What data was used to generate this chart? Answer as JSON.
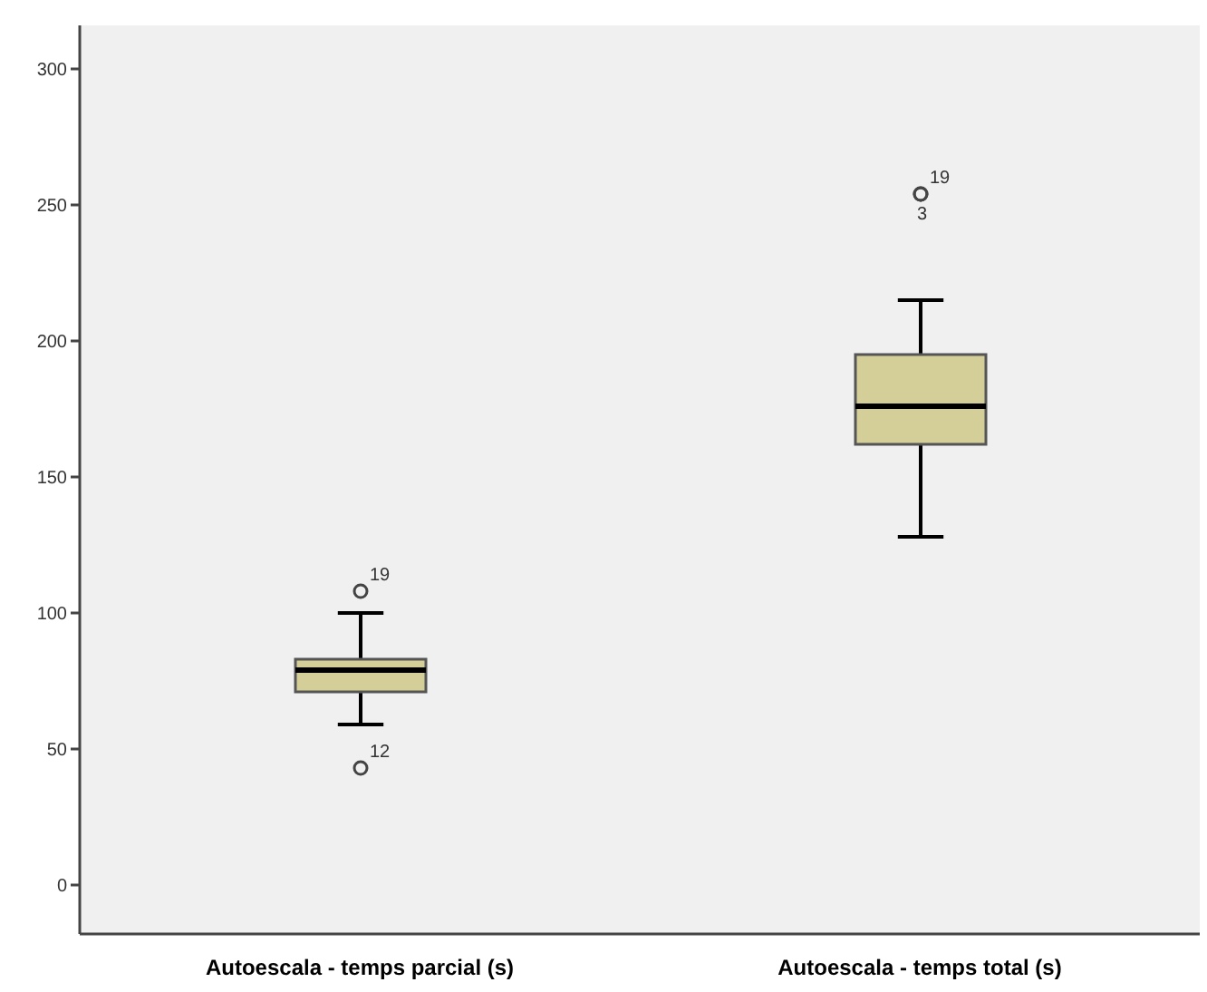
{
  "chart_data": {
    "type": "box",
    "categories": [
      "Autoescala - temps parcial (s)",
      "Autoescala - temps total (s)"
    ],
    "color": "#d4cf98",
    "boxes": [
      {
        "low": 59,
        "q1": 71,
        "median": 79,
        "q3": 83,
        "high": 100,
        "outliers": [
          108,
          43
        ]
      },
      {
        "low": 128,
        "q1": 162,
        "median": 176,
        "q3": 195,
        "high": 215,
        "outliers": [
          254,
          254
        ]
      }
    ],
    "ylim": [
      -18,
      316
    ],
    "yticks": [
      0,
      50,
      100,
      150,
      200,
      250,
      300
    ],
    "annotations": [
      "19",
      "12",
      "19",
      "3"
    ]
  }
}
